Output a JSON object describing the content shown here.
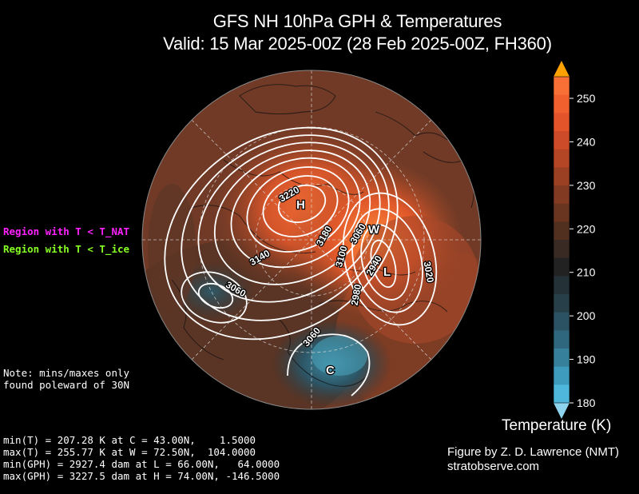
{
  "title": {
    "line1": "GFS NH 10hPa GPH & Temperatures",
    "line2": "Valid: 15 Mar 2025-00Z  (28 Feb 2025-00Z, FH360)"
  },
  "legend": {
    "nat": "Region with T < T_NAT",
    "ice": "Region with T < T_ice",
    "nat_color": "#ff22ff",
    "ice_color": "#88ff22"
  },
  "note": "Note: mins/maxes only\nfound poleward of 30N",
  "stats": [
    "min(T) = 207.28 K at C = 43.00N,    1.5000",
    "max(T) = 255.77 K at W = 72.50N,  104.0000",
    "min(GPH) = 2927.4 dam at L = 66.00N,   64.0000",
    "max(GPH) = 3227.5 dam at H = 74.00N, -146.5000"
  ],
  "credit": {
    "line1": "Figure by Z. D. Lawrence (NMT)",
    "line2": "stratobserve.com"
  },
  "colorbar": {
    "title": "Temperature (K)",
    "ticks": [
      "180",
      "190",
      "200",
      "210",
      "220",
      "230",
      "240",
      "250"
    ],
    "colors": [
      "#4fb6dc",
      "#3f9bbd",
      "#36809c",
      "#2f687e",
      "#2b5262",
      "#273f49",
      "#243136",
      "#222222",
      "#3a2a24",
      "#52301f",
      "#6a3520",
      "#823b22",
      "#9b4023",
      "#b44525",
      "#cd4b28",
      "#e4542b",
      "#f0602f",
      "#f87035"
    ],
    "over_color": "#ffa200",
    "under_color": "#8fd4ee"
  },
  "map": {
    "contour_labels": [
      "3220",
      "3180",
      "3060",
      "3100",
      "3140",
      "3060",
      "2940",
      "3020",
      "2980",
      "3060"
    ],
    "markers": {
      "H": "H",
      "L": "L",
      "W": "W",
      "C": "C"
    }
  }
}
